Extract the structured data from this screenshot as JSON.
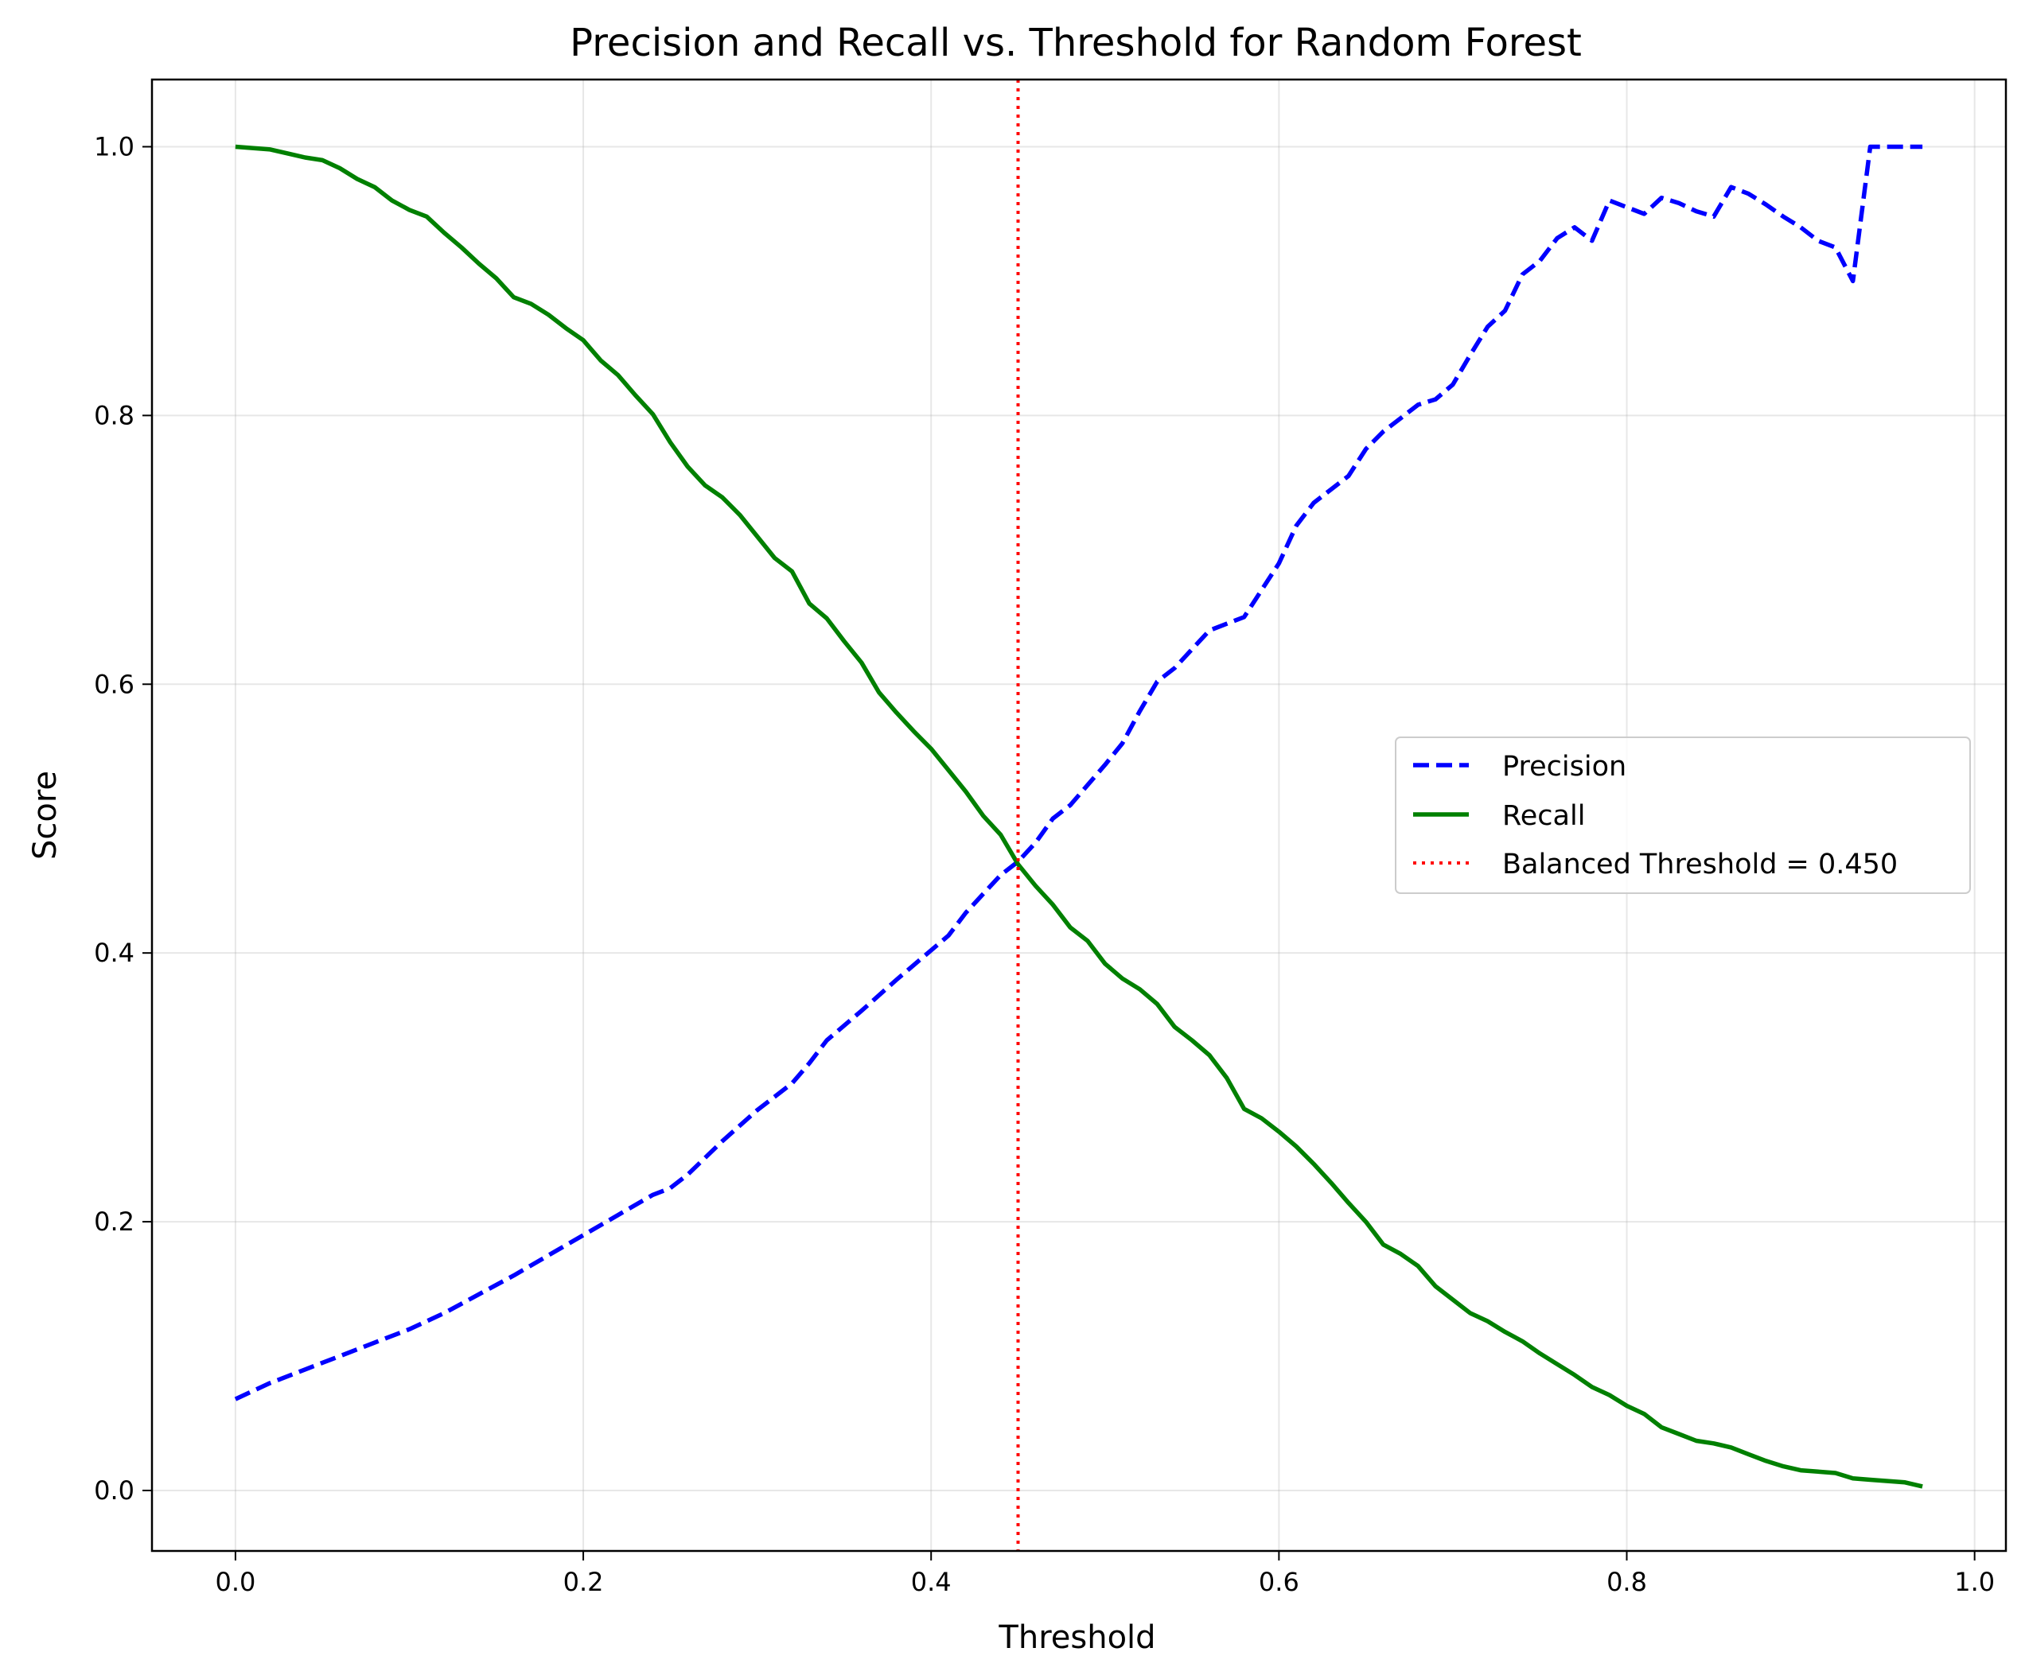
{
  "chart_data": {
    "type": "line",
    "title": "Precision and Recall vs. Threshold for Random Forest",
    "xlabel": "Threshold",
    "ylabel": "Score",
    "xlim": [
      -0.048,
      1.018
    ],
    "ylim": [
      -0.045,
      1.05
    ],
    "xticks": [
      0.0,
      0.2,
      0.4,
      0.6,
      0.8,
      1.0
    ],
    "xtick_labels": [
      "0.0",
      "0.2",
      "0.4",
      "0.6",
      "0.8",
      "1.0"
    ],
    "yticks": [
      0.0,
      0.2,
      0.4,
      0.6,
      0.8,
      1.0
    ],
    "ytick_labels": [
      "0.0",
      "0.2",
      "0.4",
      "0.6",
      "0.8",
      "1.0"
    ],
    "grid": true,
    "legend_position": "center-right",
    "series": [
      {
        "name": "Precision",
        "color": "#0000ff",
        "style": "dashed",
        "x": [
          0.0,
          0.02,
          0.04,
          0.06,
          0.08,
          0.1,
          0.12,
          0.14,
          0.16,
          0.18,
          0.2,
          0.22,
          0.24,
          0.25,
          0.26,
          0.28,
          0.3,
          0.32,
          0.33,
          0.34,
          0.36,
          0.38,
          0.4,
          0.41,
          0.42,
          0.44,
          0.45,
          0.46,
          0.47,
          0.48,
          0.5,
          0.51,
          0.52,
          0.53,
          0.54,
          0.55,
          0.56,
          0.57,
          0.58,
          0.59,
          0.6,
          0.61,
          0.62,
          0.63,
          0.64,
          0.65,
          0.66,
          0.67,
          0.68,
          0.69,
          0.7,
          0.71,
          0.72,
          0.73,
          0.74,
          0.75,
          0.76,
          0.77,
          0.78,
          0.79,
          0.8,
          0.81,
          0.82,
          0.83,
          0.84,
          0.85,
          0.86,
          0.87,
          0.88,
          0.89,
          0.9,
          0.91,
          0.92,
          0.93,
          0.94,
          0.95,
          0.96,
          0.97
        ],
        "values": [
          0.068,
          0.08,
          0.09,
          0.1,
          0.11,
          0.12,
          0.132,
          0.146,
          0.16,
          0.175,
          0.19,
          0.205,
          0.22,
          0.225,
          0.235,
          0.26,
          0.283,
          0.303,
          0.318,
          0.335,
          0.357,
          0.38,
          0.402,
          0.413,
          0.43,
          0.458,
          0.468,
          0.482,
          0.5,
          0.51,
          0.54,
          0.556,
          0.58,
          0.602,
          0.612,
          0.626,
          0.64,
          0.645,
          0.65,
          0.67,
          0.69,
          0.718,
          0.735,
          0.745,
          0.755,
          0.775,
          0.788,
          0.798,
          0.808,
          0.812,
          0.823,
          0.845,
          0.866,
          0.878,
          0.905,
          0.915,
          0.932,
          0.94,
          0.93,
          0.96,
          0.955,
          0.95,
          0.962,
          0.958,
          0.952,
          0.948,
          0.97,
          0.965,
          0.957,
          0.948,
          0.94,
          0.93,
          0.925,
          0.9,
          1.0,
          1.0,
          1.0,
          1.0
        ]
      },
      {
        "name": "Recall",
        "color": "#008000",
        "style": "solid",
        "x": [
          0.0,
          0.02,
          0.03,
          0.04,
          0.05,
          0.06,
          0.07,
          0.08,
          0.09,
          0.1,
          0.11,
          0.12,
          0.13,
          0.14,
          0.15,
          0.16,
          0.17,
          0.18,
          0.19,
          0.2,
          0.21,
          0.22,
          0.23,
          0.24,
          0.25,
          0.26,
          0.27,
          0.28,
          0.29,
          0.3,
          0.31,
          0.32,
          0.33,
          0.34,
          0.35,
          0.36,
          0.37,
          0.38,
          0.39,
          0.4,
          0.41,
          0.42,
          0.43,
          0.44,
          0.45,
          0.46,
          0.47,
          0.48,
          0.49,
          0.5,
          0.51,
          0.52,
          0.53,
          0.54,
          0.55,
          0.56,
          0.57,
          0.58,
          0.59,
          0.6,
          0.61,
          0.62,
          0.63,
          0.64,
          0.65,
          0.66,
          0.67,
          0.68,
          0.69,
          0.7,
          0.71,
          0.72,
          0.73,
          0.74,
          0.75,
          0.76,
          0.77,
          0.78,
          0.79,
          0.8,
          0.81,
          0.82,
          0.83,
          0.84,
          0.85,
          0.86,
          0.87,
          0.88,
          0.89,
          0.9,
          0.91,
          0.92,
          0.93,
          0.94,
          0.95,
          0.96,
          0.97
        ],
        "values": [
          1.0,
          0.998,
          0.995,
          0.992,
          0.99,
          0.984,
          0.976,
          0.97,
          0.96,
          0.953,
          0.948,
          0.936,
          0.925,
          0.913,
          0.902,
          0.888,
          0.883,
          0.875,
          0.865,
          0.856,
          0.841,
          0.83,
          0.815,
          0.801,
          0.78,
          0.762,
          0.748,
          0.739,
          0.726,
          0.71,
          0.694,
          0.684,
          0.66,
          0.649,
          0.632,
          0.616,
          0.594,
          0.579,
          0.565,
          0.552,
          0.536,
          0.52,
          0.502,
          0.488,
          0.466,
          0.45,
          0.436,
          0.419,
          0.409,
          0.392,
          0.381,
          0.373,
          0.362,
          0.345,
          0.335,
          0.324,
          0.307,
          0.284,
          0.277,
          0.267,
          0.256,
          0.243,
          0.229,
          0.214,
          0.2,
          0.183,
          0.176,
          0.167,
          0.152,
          0.142,
          0.132,
          0.126,
          0.118,
          0.111,
          0.102,
          0.094,
          0.086,
          0.077,
          0.071,
          0.063,
          0.057,
          0.047,
          0.042,
          0.037,
          0.035,
          0.032,
          0.027,
          0.022,
          0.018,
          0.015,
          0.014,
          0.013,
          0.009,
          0.008,
          0.007,
          0.006,
          0.003
        ]
      }
    ],
    "annotations": [
      {
        "type": "vline",
        "x": 0.45,
        "color": "#ff0000",
        "style": "dotted",
        "label": "Balanced Threshold = 0.450"
      }
    ]
  }
}
